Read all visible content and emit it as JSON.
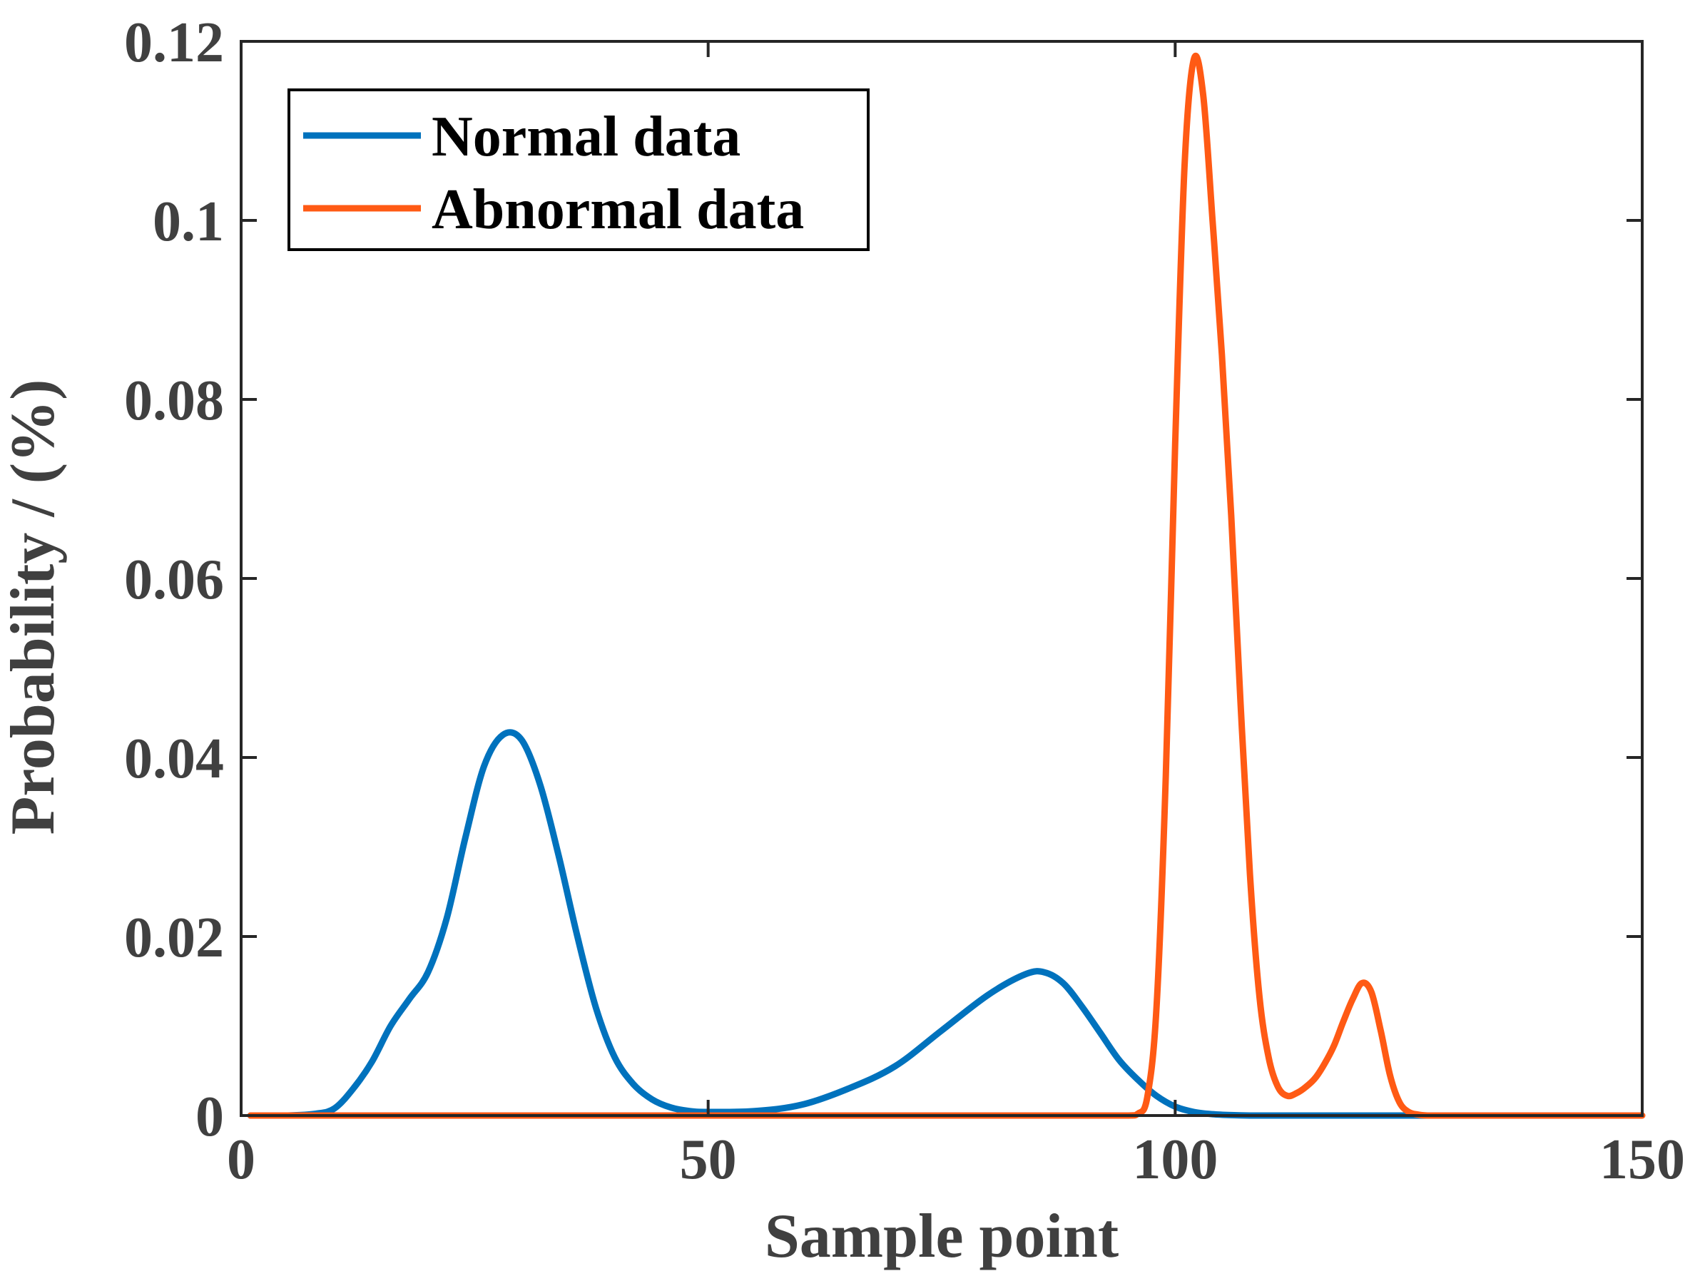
{
  "chart_data": {
    "type": "line",
    "title": "",
    "xlabel": "Sample point",
    "ylabel": "Probability / (%)",
    "xlim": [
      0,
      150
    ],
    "ylim": [
      0,
      0.12
    ],
    "xticks": [
      0,
      50,
      100,
      150
    ],
    "xtick_labels": [
      "0",
      "50",
      "100",
      "150"
    ],
    "yticks": [
      0,
      0.02,
      0.04,
      0.06,
      0.08,
      0.1,
      0.12
    ],
    "ytick_labels": [
      "0",
      "0.02",
      "0.04",
      "0.06",
      "0.08",
      "0.1",
      "0.12"
    ],
    "grid": false,
    "legend_position": "top-left",
    "series": [
      {
        "name": "Normal data",
        "color": "#0072BD",
        "x": [
          1,
          5,
          8,
          10,
          12,
          14,
          16,
          18,
          20,
          22,
          24,
          26,
          28,
          30,
          32,
          34,
          36,
          38,
          40,
          42,
          44,
          46,
          48,
          50,
          55,
          60,
          65,
          70,
          75,
          80,
          84,
          86,
          88,
          90,
          92,
          94,
          96,
          98,
          100,
          102,
          104,
          106,
          108,
          110,
          115,
          120,
          125,
          130
        ],
        "y": [
          0,
          0,
          0.0002,
          0.0008,
          0.003,
          0.006,
          0.01,
          0.013,
          0.016,
          0.022,
          0.031,
          0.039,
          0.0425,
          0.042,
          0.037,
          0.029,
          0.02,
          0.012,
          0.0065,
          0.0035,
          0.0018,
          0.0009,
          0.0005,
          0.0004,
          0.0005,
          0.0012,
          0.003,
          0.0055,
          0.0095,
          0.0135,
          0.0158,
          0.016,
          0.0148,
          0.0122,
          0.0092,
          0.0062,
          0.004,
          0.0022,
          0.001,
          0.0004,
          0.00015,
          5e-05,
          0,
          0,
          0,
          0,
          0,
          0
        ]
      },
      {
        "name": "Abnormal data",
        "color": "#FF5A14",
        "x": [
          1,
          50,
          90,
          95,
          96,
          97,
          98,
          99,
          100,
          101,
          102,
          103,
          104,
          105,
          106,
          107,
          108,
          109,
          110,
          111,
          112,
          113,
          114,
          115,
          116,
          117,
          118,
          119,
          120,
          121,
          122,
          123,
          124,
          125,
          126,
          127,
          128,
          129,
          130,
          135,
          140,
          150
        ],
        "y": [
          0,
          0,
          0,
          0,
          0.0002,
          0.002,
          0.012,
          0.038,
          0.075,
          0.106,
          0.118,
          0.114,
          0.1,
          0.085,
          0.067,
          0.046,
          0.027,
          0.0135,
          0.0065,
          0.0032,
          0.0022,
          0.0025,
          0.0032,
          0.0042,
          0.0058,
          0.0078,
          0.0105,
          0.013,
          0.0148,
          0.0138,
          0.0095,
          0.0045,
          0.0015,
          0.0004,
          0.0001,
          0,
          0,
          0,
          0,
          0,
          0,
          0
        ]
      }
    ]
  }
}
